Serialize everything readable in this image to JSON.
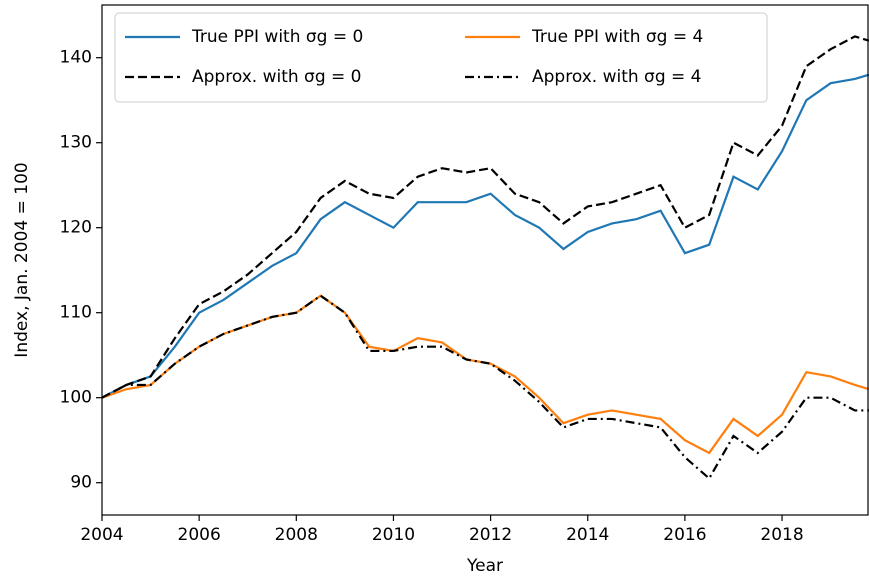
{
  "chart_data": {
    "type": "line",
    "xlabel": "Year",
    "ylabel": "Index, Jan. 2004 = 100",
    "x": [
      2004,
      2004.5,
      2005,
      2005.5,
      2006,
      2006.5,
      2007,
      2007.5,
      2008,
      2008.5,
      2009,
      2009.5,
      2010,
      2010.5,
      2011,
      2011.5,
      2012,
      2012.5,
      2013,
      2013.5,
      2014,
      2014.5,
      2015,
      2015.5,
      2016,
      2016.5,
      2017,
      2017.5,
      2018,
      2018.5,
      2019,
      2019.5,
      2019.79
    ],
    "series": [
      {
        "name": "True PPI with σg = 0",
        "color": "#1f77b4",
        "linestyle": "solid",
        "values": [
          100,
          101.5,
          102.5,
          106,
          110,
          111.5,
          113.5,
          115.5,
          117,
          121,
          123,
          121.5,
          120,
          123,
          123,
          123,
          124,
          121.5,
          120,
          117.5,
          119.5,
          120.5,
          121,
          122,
          117,
          118,
          126,
          124.5,
          129,
          135,
          137,
          137.5,
          138
        ]
      },
      {
        "name": "Approx. with σg = 0",
        "color": "#000000",
        "linestyle": "dashed",
        "values": [
          100,
          101.5,
          102.5,
          107,
          111,
          112.5,
          114.5,
          117,
          119.5,
          123.5,
          125.5,
          124,
          123.5,
          126,
          127,
          126.5,
          127,
          124,
          123,
          120.5,
          122.5,
          123,
          124,
          125,
          120,
          121.5,
          130,
          128.5,
          132,
          139,
          141,
          142.5,
          142
        ]
      },
      {
        "name": "True PPI with σg = 4",
        "color": "#ff7f0e",
        "linestyle": "solid",
        "values": [
          100,
          101,
          101.5,
          104,
          106,
          107.5,
          108.5,
          109.5,
          110,
          112,
          110,
          106,
          105.5,
          107,
          106.5,
          104.5,
          104,
          102.5,
          100,
          97,
          98,
          98.5,
          98,
          97.5,
          95,
          93.5,
          97.5,
          95.5,
          98,
          103,
          102.5,
          101.5,
          101
        ]
      },
      {
        "name": "Approx. with σg = 4",
        "color": "#000000",
        "linestyle": "dashdot",
        "values": [
          100,
          101.5,
          101.5,
          104,
          106,
          107.5,
          108.5,
          109.5,
          110,
          112,
          110,
          105.5,
          105.5,
          106,
          106,
          104.5,
          104,
          102,
          99.5,
          96.5,
          97.5,
          97.5,
          97,
          96.5,
          93,
          90.5,
          95.5,
          93.5,
          96,
          100,
          100,
          98.5,
          98.5
        ]
      }
    ],
    "xlim": [
      2004,
      2019.79
    ],
    "xticks": [
      2004,
      2006,
      2008,
      2010,
      2012,
      2014,
      2016,
      2018
    ],
    "ylim": [
      86.2,
      146.2
    ],
    "yticks": [
      90,
      100,
      110,
      120,
      130,
      140
    ],
    "grid": false,
    "legend": "upper left"
  }
}
